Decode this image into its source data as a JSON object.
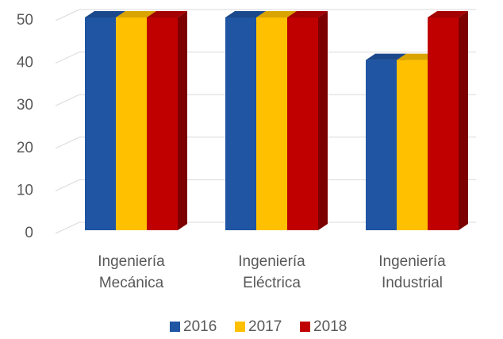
{
  "chart_data": {
    "type": "bar3d",
    "categories": [
      [
        "Ingeniería",
        "Mecánica"
      ],
      [
        "Ingeniería",
        "Eléctrica"
      ],
      [
        "Ingeniería",
        "Industrial"
      ]
    ],
    "series": [
      {
        "name": "2016",
        "color": "#1f55a3",
        "values": [
          50,
          50,
          40
        ]
      },
      {
        "name": "2017",
        "color": "#ffc000",
        "values": [
          50,
          50,
          40
        ]
      },
      {
        "name": "2018",
        "color": "#c00000",
        "values": [
          50,
          50,
          50
        ]
      }
    ],
    "ylim": [
      0,
      50
    ],
    "yticks": [
      0,
      10,
      20,
      30,
      40,
      50
    ],
    "grid": true,
    "legend": "bottom"
  }
}
